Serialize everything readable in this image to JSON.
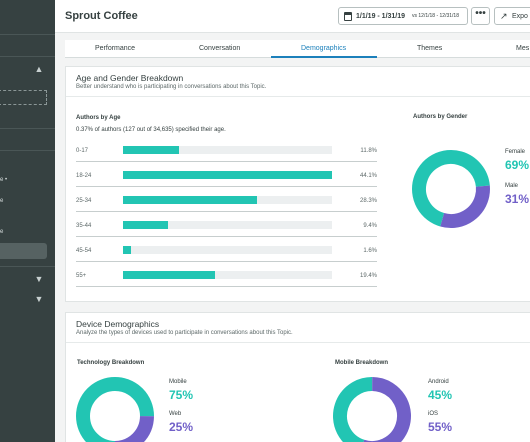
{
  "colors": {
    "teal": "#22c5b3",
    "purple": "#7160c8",
    "blue": "#1c80bb",
    "sidebar": "#364141"
  },
  "sidebar": {
    "items": [
      {
        "label": "e •"
      },
      {
        "label": "e"
      },
      {
        "label": "e"
      }
    ],
    "icons": [
      "chevron-up-icon",
      "chevron-down-icon",
      "chevron-down-icon"
    ]
  },
  "header": {
    "title": "Sprout Coffee",
    "date_range": "1/1/19 - 1/31/19",
    "compare_range": "vs 12/1/18 - 12/31/18",
    "more_icon": "•••",
    "export_label": "Expo",
    "icons": [
      "calendar-icon",
      "more-icon",
      "export-icon"
    ]
  },
  "tabs": [
    "Performance",
    "Conversation",
    "Demographics",
    "Themes",
    "Mes"
  ],
  "active_tab": "Demographics",
  "age_gender": {
    "title": "Age and Gender Breakdown",
    "subtitle": "Better understand who is participating in conversations about this Topic.",
    "by_age_title": "Authors by Age",
    "by_age_subtitle": "0.37% of authors (127 out of 34,635) specified their age.",
    "by_gender_title": "Authors by Gender"
  },
  "device": {
    "title": "Device Demographics",
    "subtitle": "Analyze the types of devices used to participate in conversations about this Topic.",
    "tech_title": "Technology Breakdown",
    "mobile_title": "Mobile Breakdown"
  },
  "chart_data": [
    {
      "type": "bar",
      "orientation": "horizontal",
      "title": "Authors by Age",
      "categories": [
        "0-17",
        "18-24",
        "25-34",
        "35-44",
        "45-54",
        "55+"
      ],
      "values": [
        11.8,
        44.1,
        28.3,
        9.4,
        1.6,
        19.4
      ],
      "labels": [
        "11.8%",
        "44.1%",
        "28.3%",
        "9.4%",
        "1.6%",
        "19.4%"
      ],
      "color": "#22c5b3"
    },
    {
      "type": "pie",
      "title": "Authors by Gender",
      "categories": [
        "Female",
        "Male"
      ],
      "values": [
        69,
        31
      ],
      "labels": [
        "69%",
        "31%"
      ],
      "colors": [
        "#22c5b3",
        "#7160c8"
      ]
    },
    {
      "type": "pie",
      "title": "Technology Breakdown",
      "categories": [
        "Mobile",
        "Web"
      ],
      "values": [
        75,
        25
      ],
      "labels": [
        "75%",
        "25%"
      ],
      "colors": [
        "#22c5b3",
        "#7160c8"
      ]
    },
    {
      "type": "pie",
      "title": "Mobile Breakdown",
      "categories": [
        "Android",
        "iOS"
      ],
      "values": [
        45,
        55
      ],
      "labels": [
        "45%",
        "55%"
      ],
      "colors": [
        "#22c5b3",
        "#7160c8"
      ]
    }
  ]
}
